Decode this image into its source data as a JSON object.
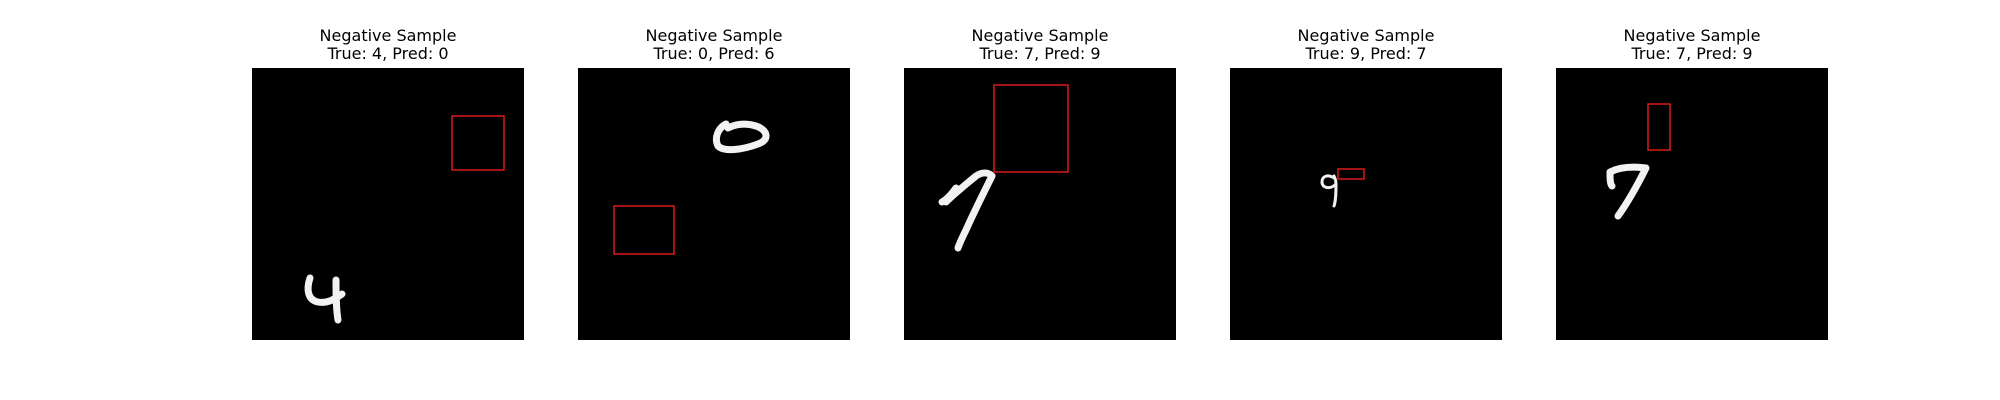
{
  "colors": {
    "image_background": "#000000",
    "digit_stroke": "#f2f2f2",
    "box_stroke": "#d81a1a"
  },
  "panels": [
    {
      "title": "Negative Sample",
      "subtitle": "True: 4, Pred: 0",
      "digit": "4"
    },
    {
      "title": "Negative Sample",
      "subtitle": "True: 0, Pred: 6",
      "digit": "0"
    },
    {
      "title": "Negative Sample",
      "subtitle": "True: 7, Pred: 9",
      "digit": "7"
    },
    {
      "title": "Negative Sample",
      "subtitle": "True: 9, Pred: 7",
      "digit": "9"
    },
    {
      "title": "Negative Sample",
      "subtitle": "True: 7, Pred: 9",
      "digit": "7"
    }
  ]
}
